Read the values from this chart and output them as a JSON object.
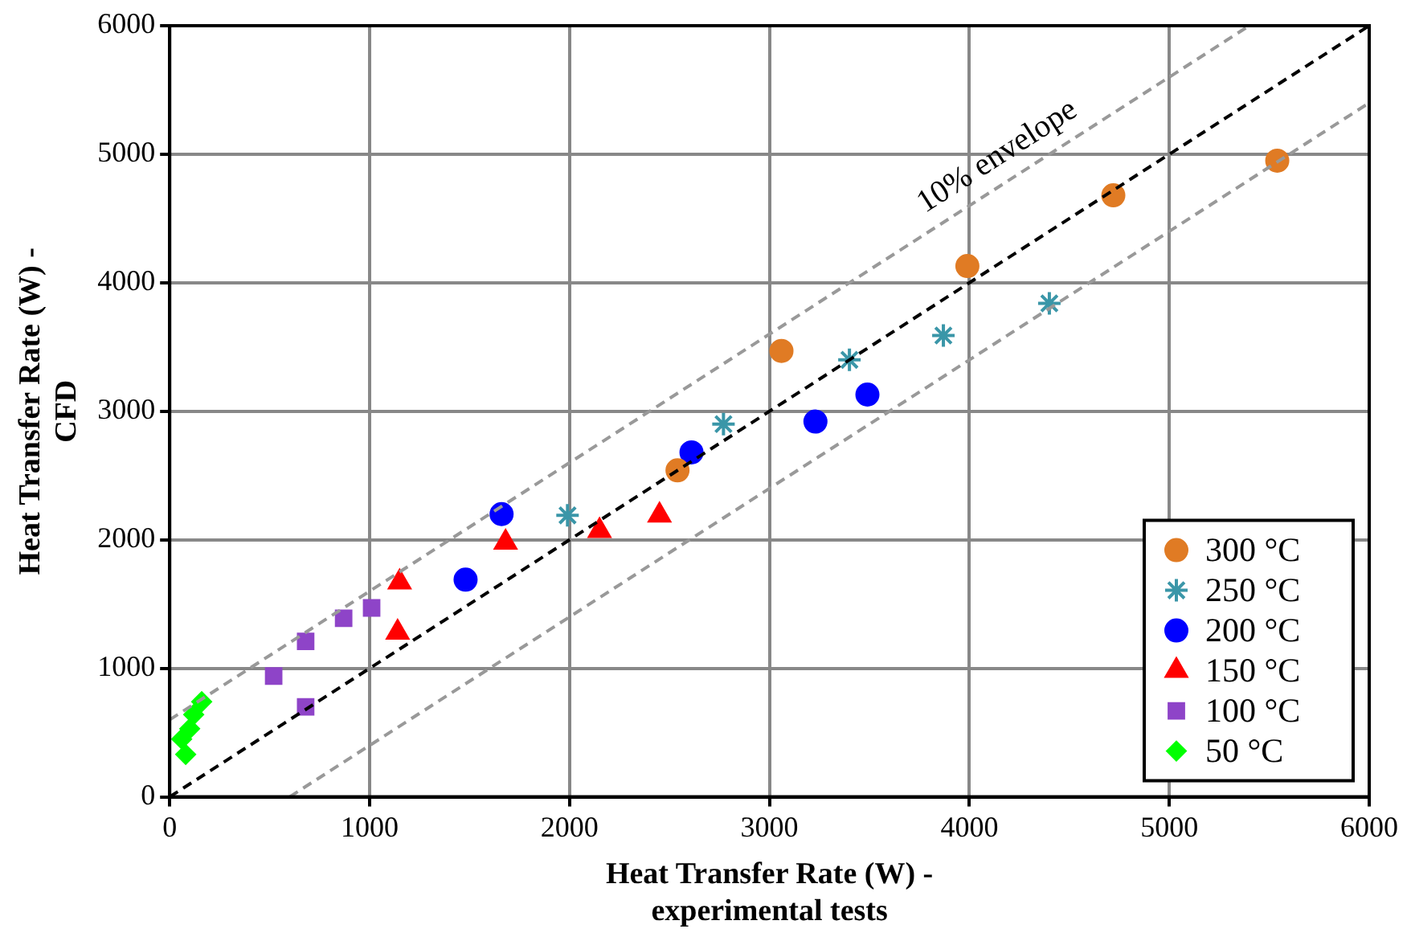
{
  "chart_data": {
    "type": "scatter",
    "xlabel": "Heat Transfer Rate (W) -\nexperimental tests",
    "ylabel": "Heat Transfer Rate (W) -\nCFD",
    "xlim": [
      0,
      6000
    ],
    "ylim": [
      0,
      6000
    ],
    "xticks": [
      0,
      1000,
      2000,
      3000,
      4000,
      5000,
      6000
    ],
    "yticks": [
      0,
      1000,
      2000,
      3000,
      4000,
      5000,
      6000
    ],
    "grid": true,
    "legend": "bottom right",
    "annotations": [
      "10% envelope"
    ],
    "series": [
      {
        "type": "line",
        "color": "#000000",
        "line_style": "dashed",
        "marker": "none",
        "x": [
          0,
          6000
        ],
        "values": [
          0,
          6000
        ]
      },
      {
        "type": "line",
        "color": "#999999",
        "line_style": "dashed",
        "marker": "none",
        "x": [
          0,
          5400
        ],
        "values": [
          600,
          6000
        ]
      },
      {
        "type": "line",
        "color": "#999999",
        "line_style": "dashed",
        "marker": "none",
        "x": [
          600,
          6000
        ],
        "values": [
          0,
          5400
        ]
      },
      {
        "name": "300 °C",
        "color": "#e07b24",
        "marker": "circle",
        "x": [
          2540,
          3060,
          3990,
          4720,
          5540
        ],
        "values": [
          2540,
          3470,
          4130,
          4680,
          4950
        ]
      },
      {
        "name": "250 °C",
        "color": "#3a96a8",
        "marker": "cross",
        "x": [
          1990,
          2770,
          3400,
          3870,
          4400
        ],
        "values": [
          2190,
          2900,
          3400,
          3590,
          3840
        ]
      },
      {
        "name": "200 °C",
        "color": "#0000ff",
        "marker": "circle",
        "x": [
          1660,
          1480,
          2610,
          3230,
          3490
        ],
        "values": [
          2200,
          1690,
          2680,
          2920,
          3130
        ]
      },
      {
        "name": "150 °C",
        "color": "#ff0000",
        "marker": "triangle",
        "x": [
          1150,
          1140,
          1680,
          2150,
          2450
        ],
        "values": [
          1670,
          1280,
          1980,
          2070,
          2190
        ]
      },
      {
        "name": "100 °C",
        "color": "#8e44c8",
        "marker": "square",
        "x": [
          520,
          680,
          680,
          870,
          1010
        ],
        "values": [
          940,
          700,
          1210,
          1390,
          1470
        ]
      },
      {
        "name": "50 °C",
        "color": "#00ff00",
        "marker": "diamond",
        "x": [
          80,
          60,
          100,
          120,
          160
        ],
        "values": [
          330,
          450,
          530,
          640,
          740
        ]
      }
    ]
  }
}
